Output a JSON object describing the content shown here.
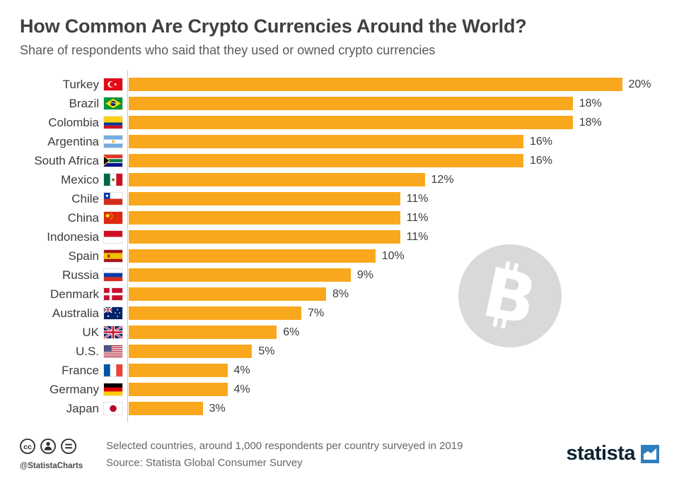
{
  "chart_data": {
    "type": "bar",
    "orientation": "horizontal",
    "title": "How Common Are Crypto Currencies Around the World?",
    "subtitle": "Share of respondents who said that they used or owned crypto currencies",
    "unit": "%",
    "xlim": [
      0,
      20
    ],
    "grid": "off",
    "legend": "none",
    "bar_color": "#F9A71D",
    "categories": [
      "Turkey",
      "Brazil",
      "Colombia",
      "Argentina",
      "South Africa",
      "Mexico",
      "Chile",
      "China",
      "Indonesia",
      "Spain",
      "Russia",
      "Denmark",
      "Australia",
      "UK",
      "U.S.",
      "France",
      "Germany",
      "Japan"
    ],
    "values": [
      20,
      18,
      18,
      16,
      16,
      12,
      11,
      11,
      11,
      10,
      9,
      8,
      7,
      6,
      5,
      4,
      4,
      3
    ],
    "value_labels": [
      "20%",
      "18%",
      "18%",
      "16%",
      "16%",
      "12%",
      "11%",
      "11%",
      "11%",
      "10%",
      "9%",
      "8%",
      "7%",
      "6%",
      "5%",
      "4%",
      "4%",
      "3%"
    ],
    "flags": [
      "turkey",
      "brazil",
      "colombia",
      "argentina",
      "south-africa",
      "mexico",
      "chile",
      "china",
      "indonesia",
      "spain",
      "russia",
      "denmark",
      "australia",
      "uk",
      "us",
      "france",
      "germany",
      "japan"
    ]
  },
  "watermark": {
    "icon": "bitcoin-icon"
  },
  "footer": {
    "note": "Selected countries, around 1,000 respondents per country surveyed in 2019",
    "source": "Source: Statista Global Consumer Survey",
    "credit": "@StatistaCharts",
    "brand": "statista",
    "brand_color": "#2F7FBF"
  }
}
